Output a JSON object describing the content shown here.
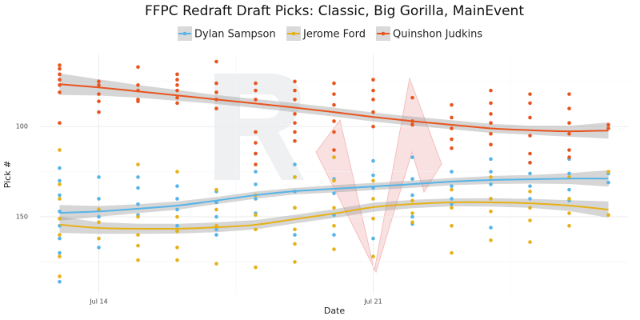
{
  "chart_data": {
    "type": "scatter",
    "title": "FFPC Redraft Draft Picks: Classic, Big Gorilla, MainEvent",
    "x_label": "Date",
    "y_label": "Pick #",
    "xlim": [
      12.5,
      27.5
    ],
    "xticks": [
      {
        "value": 14,
        "label": "Jul 14"
      },
      {
        "value": 21,
        "label": "Jul 21"
      }
    ],
    "minor_xticks": [
      17.5,
      24.5
    ],
    "ylim": [
      60,
      193
    ],
    "y_reversed": true,
    "yticks": [
      100,
      150
    ],
    "minor_yticks": [
      75,
      125,
      175
    ],
    "grid": true,
    "legend": "top",
    "trend_x": [
      13,
      14,
      15,
      16,
      17,
      18,
      19,
      20,
      21,
      22,
      23,
      24,
      25,
      26,
      27
    ],
    "series": [
      {
        "name": "Dylan Sampson",
        "color": "#56b4e9",
        "x": [
          13,
          13,
          13,
          13,
          13,
          13,
          13,
          13,
          14,
          14,
          14,
          14,
          14,
          15,
          15,
          15,
          15,
          16,
          16,
          16,
          16,
          16,
          17,
          17,
          17,
          17,
          17,
          18,
          18,
          18,
          18,
          18,
          19,
          19,
          19,
          19,
          19,
          20,
          20,
          20,
          20,
          20,
          21,
          21,
          21,
          21,
          22,
          22,
          22,
          22,
          22,
          23,
          23,
          23,
          23,
          24,
          24,
          24,
          24,
          24,
          25,
          25,
          25,
          25,
          26,
          26,
          26,
          26,
          27,
          27
        ],
        "values": [
          123,
          130,
          138,
          147,
          155,
          162,
          170,
          186,
          128,
          140,
          146,
          150,
          167,
          128,
          134,
          143,
          149,
          133,
          140,
          146,
          155,
          158,
          136,
          142,
          150,
          157,
          160,
          115,
          125,
          132,
          140,
          148,
          121,
          128,
          136,
          145,
          160,
          117,
          129,
          137,
          149,
          160,
          119,
          127,
          134,
          162,
          117,
          129,
          138,
          150,
          154,
          125,
          133,
          140,
          143,
          118,
          125,
          132,
          140,
          156,
          120,
          126,
          133,
          140,
          118,
          126,
          135,
          141,
          126,
          131
        ],
        "trend": [
          147.8,
          147,
          145.5,
          143.8,
          141,
          138,
          135.8,
          134.5,
          133.2,
          131.9,
          130.5,
          129.6,
          129.2,
          128.8,
          128.8
        ],
        "band_low": [
          143.5,
          144,
          143,
          141.5,
          139,
          136,
          134,
          132.5,
          131.2,
          129.9,
          128.5,
          127.4,
          126.8,
          125.8,
          124.3
        ],
        "band_high": [
          152.1,
          150,
          148,
          146.1,
          143,
          140,
          137.6,
          136.5,
          135.2,
          133.9,
          132.5,
          131.8,
          131.6,
          131.8,
          133.3
        ]
      },
      {
        "name": "Jerome Ford",
        "color": "#e6b116",
        "x": [
          13,
          13,
          13,
          13,
          13,
          13,
          13,
          14,
          14,
          14,
          15,
          15,
          15,
          15,
          15,
          16,
          16,
          16,
          16,
          16,
          17,
          17,
          17,
          17,
          18,
          18,
          18,
          18,
          19,
          19,
          19,
          19,
          19,
          20,
          20,
          20,
          20,
          20,
          21,
          21,
          21,
          21,
          22,
          22,
          22,
          23,
          23,
          23,
          23,
          24,
          24,
          24,
          24,
          25,
          25,
          25,
          25,
          26,
          26,
          26,
          26,
          27,
          27
        ],
        "values": [
          113,
          132,
          140,
          151,
          160,
          172,
          183,
          146,
          153,
          162,
          121,
          150,
          160,
          166,
          174,
          125,
          150,
          158,
          167,
          174,
          135,
          146,
          155,
          176,
          138,
          149,
          157,
          178,
          128,
          145,
          157,
          165,
          175,
          117,
          130,
          145,
          155,
          168,
          130,
          140,
          151,
          172,
          141,
          148,
          153,
          135,
          145,
          155,
          170,
          128,
          140,
          147,
          163,
          136,
          145,
          152,
          164,
          128,
          140,
          148,
          155,
          125,
          149
        ],
        "trend": [
          154.4,
          156.2,
          156.6,
          156.6,
          155.8,
          154.4,
          151.3,
          148.2,
          144.7,
          142.9,
          142,
          142,
          142.5,
          143.8,
          146
        ],
        "band_low": [
          149.9,
          153,
          153.8,
          153.9,
          153.1,
          151.8,
          148.9,
          145.8,
          142.2,
          140.6,
          139.8,
          139.7,
          140,
          140.8,
          141.5
        ],
        "band_high": [
          158.9,
          159.4,
          159.4,
          159.3,
          158.5,
          157,
          153.7,
          150.6,
          147.2,
          145.2,
          144.2,
          144.3,
          145,
          146.8,
          150.5
        ]
      },
      {
        "name": "Quinshon Judkins",
        "color": "#e8541e",
        "x": [
          13,
          13,
          13,
          13,
          13,
          13,
          13,
          14,
          14,
          14,
          14,
          14,
          15,
          15,
          15,
          15,
          15,
          16,
          16,
          16,
          16,
          16,
          16,
          17,
          17,
          17,
          17,
          17,
          18,
          18,
          18,
          18,
          18,
          18,
          18,
          19,
          19,
          19,
          19,
          19,
          19,
          19,
          20,
          20,
          20,
          20,
          20,
          20,
          21,
          21,
          21,
          21,
          21,
          22,
          22,
          22,
          23,
          23,
          23,
          23,
          23,
          24,
          24,
          24,
          24,
          24,
          24,
          25,
          25,
          25,
          25,
          25,
          25,
          26,
          26,
          26,
          26,
          26,
          26,
          27,
          27
        ],
        "values": [
          66,
          68,
          71,
          74,
          77,
          81,
          98,
          75,
          77,
          82,
          86,
          92,
          67,
          77,
          80,
          85,
          86,
          71,
          74,
          77,
          80,
          84,
          87,
          64,
          76,
          81,
          85,
          90,
          76,
          80,
          85,
          103,
          109,
          115,
          121,
          75,
          80,
          85,
          93,
          98,
          103,
          108,
          76,
          82,
          88,
          97,
          103,
          113,
          74,
          80,
          85,
          92,
          100,
          84,
          97,
          99,
          88,
          95,
          101,
          107,
          112,
          80,
          87,
          93,
          98,
          104,
          110,
          82,
          87,
          95,
          105,
          115,
          120,
          82,
          90,
          98,
          104,
          113,
          117,
          99,
          101
        ],
        "trend": [
          76.5,
          78.3,
          80.5,
          82.7,
          85,
          87.2,
          89.5,
          92,
          94.7,
          97,
          99,
          101,
          102,
          102.6,
          102.2
        ],
        "band_low": [
          70.5,
          73.8,
          77,
          79.7,
          82.5,
          84.7,
          87,
          89.5,
          92.2,
          94.5,
          96.5,
          98.5,
          99.5,
          99.6,
          97.7
        ],
        "band_high": [
          82.5,
          82.8,
          84,
          85.7,
          87.5,
          89.7,
          92,
          94.5,
          97.2,
          99.5,
          101.5,
          103.5,
          104.5,
          105.6,
          106.7
        ]
      }
    ]
  }
}
